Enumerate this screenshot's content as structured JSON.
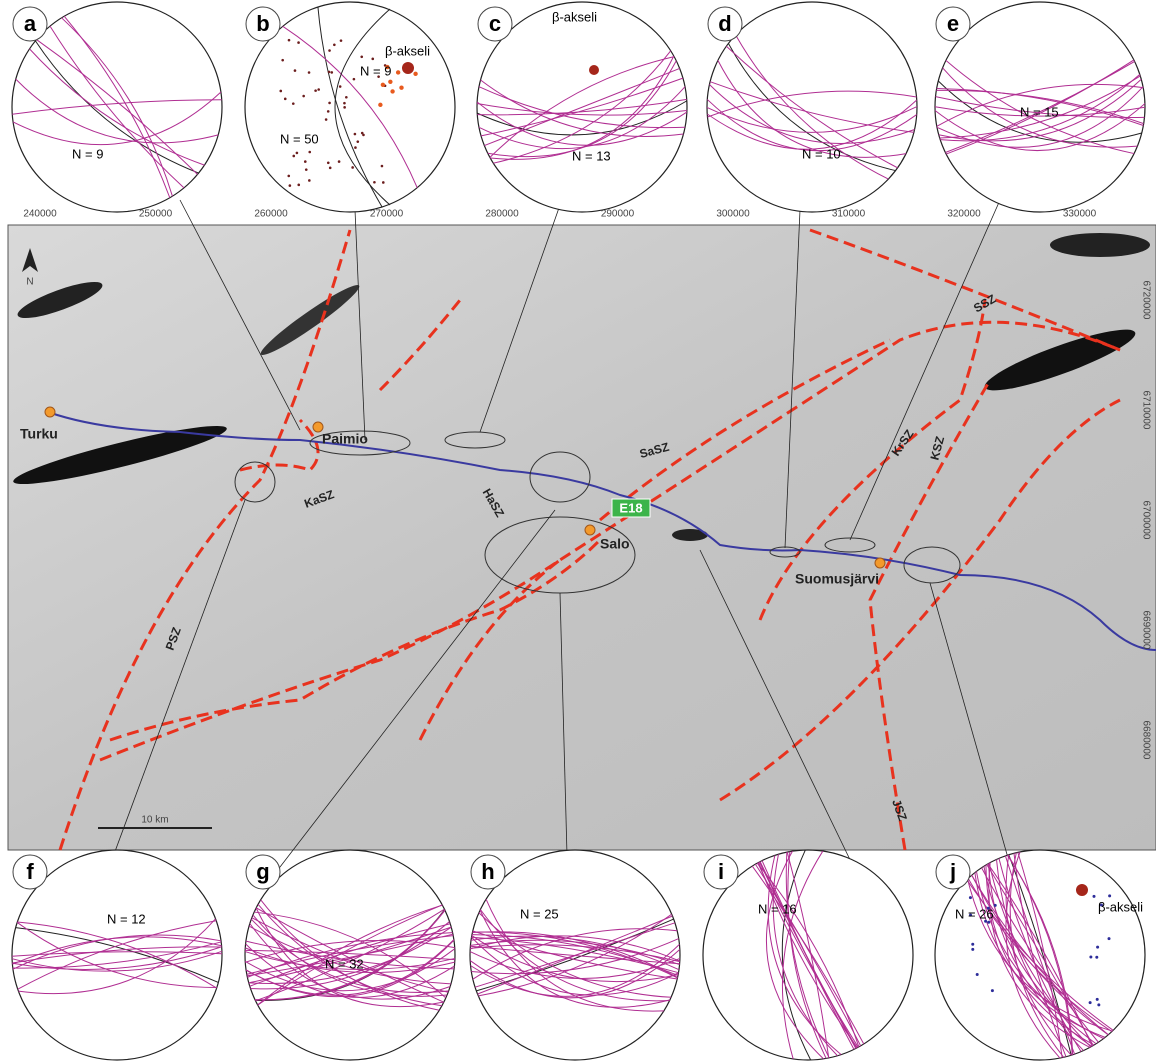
{
  "panels": [
    {
      "letter": "a",
      "n_label": "N = 9"
    },
    {
      "letter": "b",
      "n_label": "N = 50",
      "n_label_2": "N = 9",
      "beta": "β-akseli"
    },
    {
      "letter": "c",
      "n_label": "N = 13",
      "beta": "β-akseli"
    },
    {
      "letter": "d",
      "n_label": "N = 10"
    },
    {
      "letter": "e",
      "n_label": "N = 15"
    },
    {
      "letter": "f",
      "n_label": "N = 12"
    },
    {
      "letter": "g",
      "n_label": "N = 32"
    },
    {
      "letter": "h",
      "n_label": "N = 25"
    },
    {
      "letter": "i",
      "n_label": "N = 16"
    },
    {
      "letter": "j",
      "n_label": "N = 26",
      "beta": "β-akseli"
    }
  ],
  "map": {
    "x_ticks": [
      "240000",
      "250000",
      "260000",
      "270000",
      "280000",
      "290000",
      "300000",
      "310000",
      "320000",
      "330000"
    ],
    "y_ticks": [
      "6720000",
      "6710000",
      "6700000",
      "6690000",
      "6680000"
    ],
    "places": [
      "Turku",
      "Paimio",
      "Salo",
      "Suomusjärvi"
    ],
    "shear_zones": [
      "PSZ",
      "KaSZ",
      "HaSZ",
      "SaSZ",
      "KrSZ",
      "KSZ",
      "SSZ",
      "JSZ"
    ],
    "road": "E18",
    "scale": "10 km",
    "north": "N"
  }
}
